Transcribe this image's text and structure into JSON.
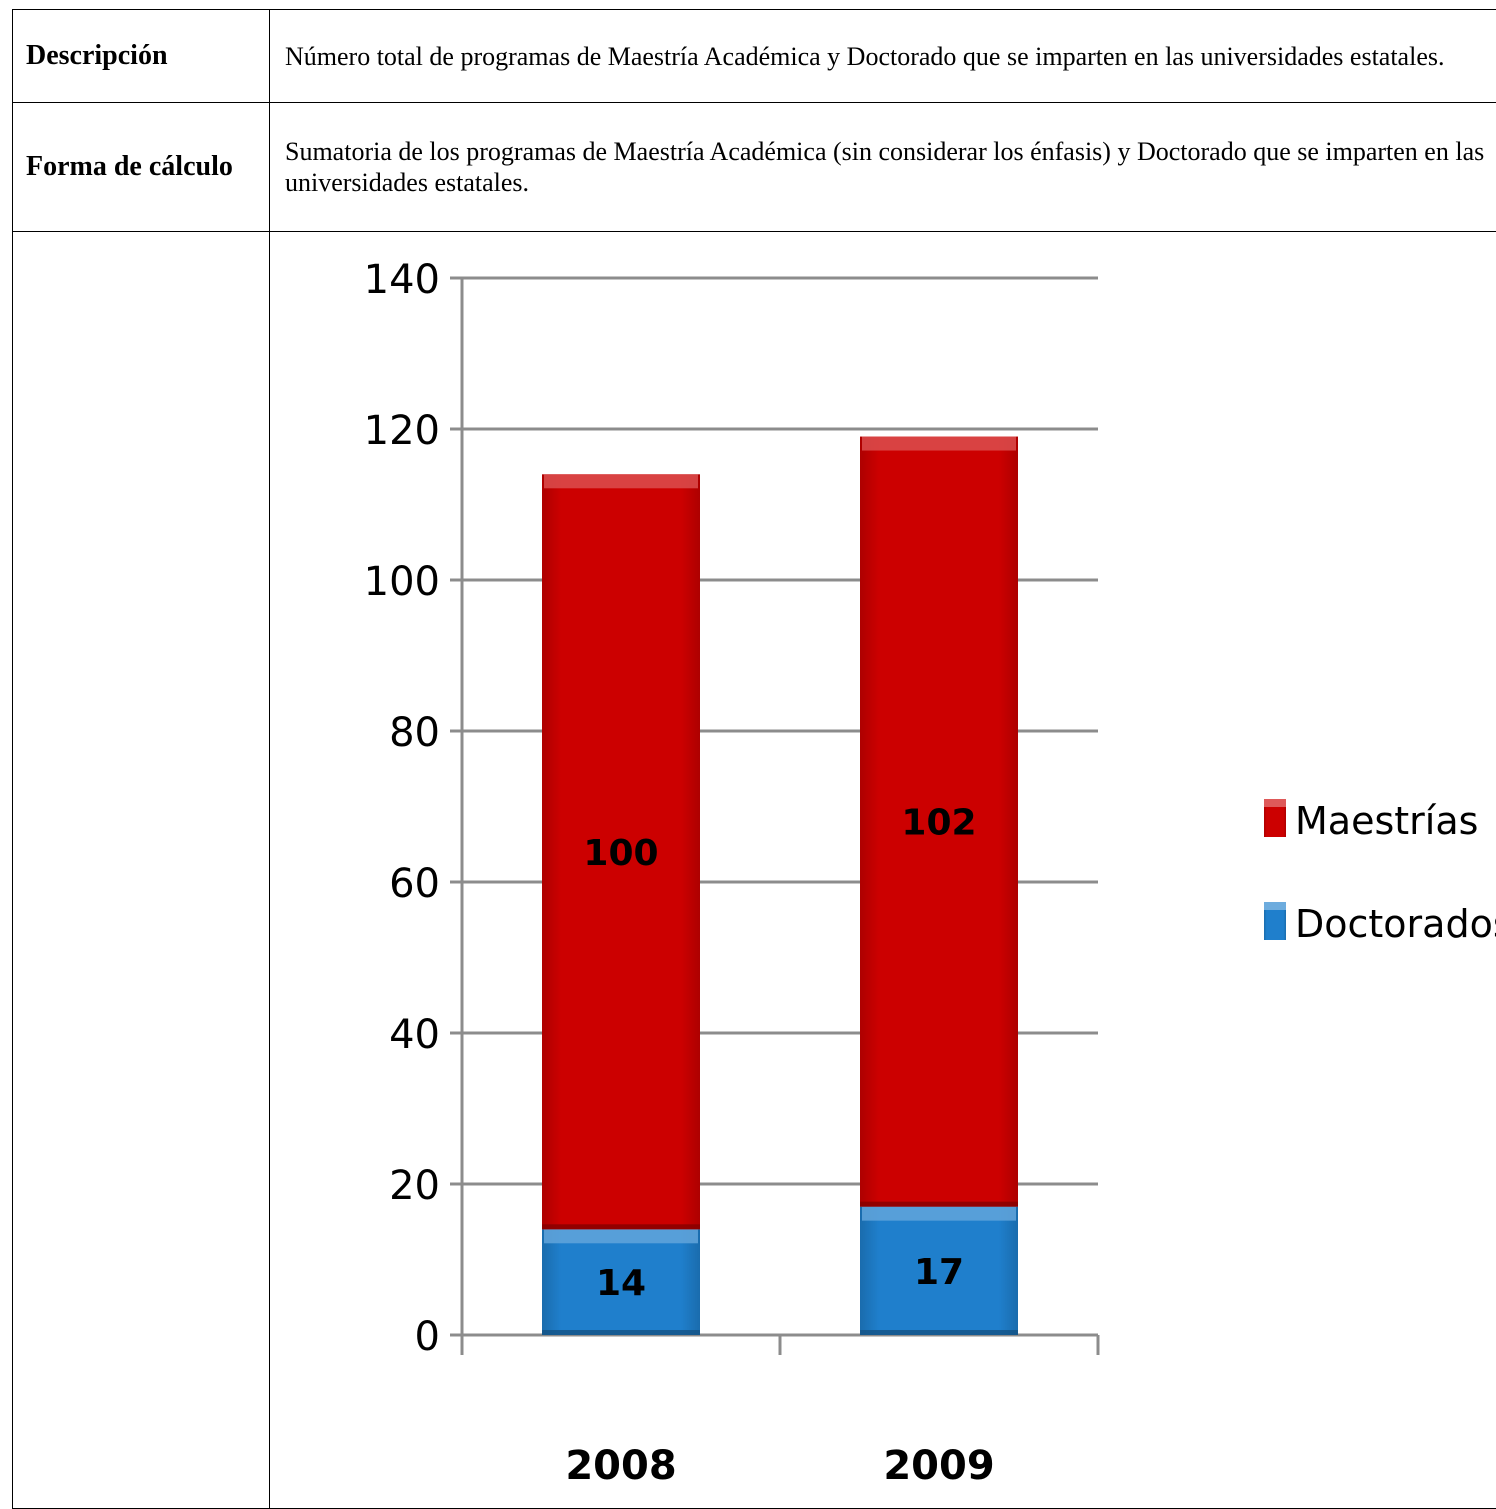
{
  "rows": [
    {
      "label": "Descripción",
      "value": "Número total de programas de Maestría Académica y Doctorado que se imparten en las universidades estatales."
    },
    {
      "label": "Forma de cálculo",
      "value": "Sumatoria de los programas de Maestría Académica (sin considerar los énfasis) y Doctorado que se imparten en las universidades estatales."
    }
  ],
  "chart_data": {
    "type": "bar",
    "stacked": true,
    "categories": [
      "2008",
      "2009"
    ],
    "series": [
      {
        "name": "Doctorados",
        "values": [
          14,
          17
        ],
        "color": "#1f7fcc"
      },
      {
        "name": "Maestrías",
        "values": [
          100,
          102
        ],
        "color": "#cc0000"
      }
    ],
    "title": "",
    "xlabel": "",
    "ylabel": "",
    "ylim": [
      0,
      140
    ],
    "yticks": [
      0,
      20,
      40,
      60,
      80,
      100,
      120,
      140
    ],
    "grid": true,
    "legend_position": "right"
  }
}
